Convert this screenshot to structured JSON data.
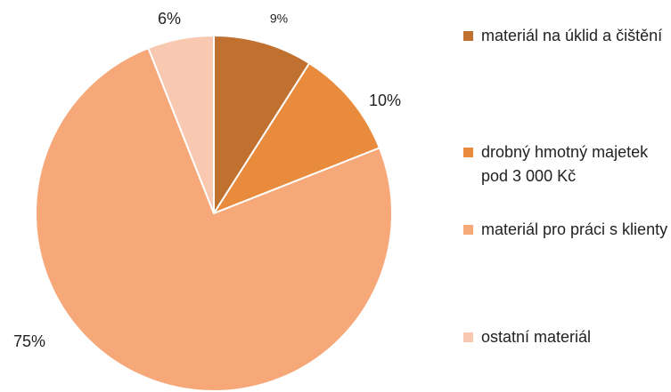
{
  "chart_data": {
    "type": "pie",
    "categories": [
      "materiál na úklid a čištění",
      "drobný hmotný majetek pod 3 000 Kč",
      "materiál pro práci s klienty",
      "ostatní materiál"
    ],
    "values": [
      9,
      10,
      75,
      6
    ],
    "value_labels": [
      "9%",
      "10%",
      "75%",
      "6%"
    ],
    "colors": [
      "#C0712F",
      "#E88B3C",
      "#F6A878",
      "#F8C8B0"
    ],
    "legend": "right"
  }
}
